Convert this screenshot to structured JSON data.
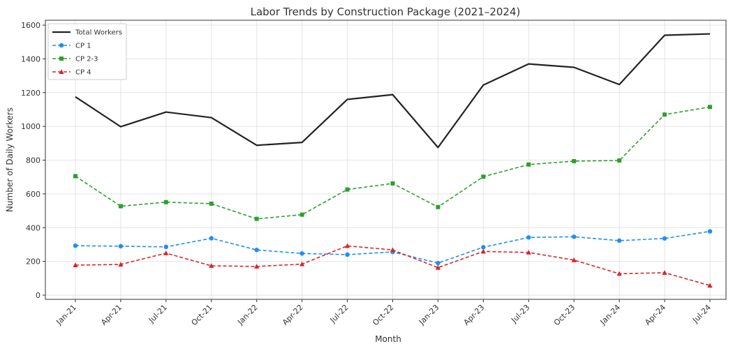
{
  "chart_data": {
    "type": "line",
    "title": "Labor Trends by Construction Package (2021–2024)",
    "xlabel": "Month",
    "ylabel": "Number of Daily Workers",
    "categories": [
      "Jan-21",
      "Apr-21",
      "Jul-21",
      "Oct-21",
      "Jan-22",
      "Apr-22",
      "Jul-22",
      "Oct-22",
      "Jan-23",
      "Apr-23",
      "Jul-23",
      "Oct-23",
      "Jan-24",
      "Apr-24",
      "Jul-24"
    ],
    "ylim": [
      0,
      1600
    ],
    "yticks": [
      0,
      200,
      400,
      600,
      800,
      1000,
      1200,
      1400,
      1600
    ],
    "grid": true,
    "legend_position": "top-left",
    "series": [
      {
        "name": "Total Workers",
        "color": "#222222",
        "style": "solid",
        "marker": "none",
        "values": [
          1175,
          998,
          1085,
          1052,
          888,
          905,
          1160,
          1188,
          875,
          1245,
          1370,
          1350,
          1248,
          1540,
          1548
        ]
      },
      {
        "name": "CP 1",
        "color": "#1f8ff0",
        "style": "dashed",
        "marker": "circle",
        "values": [
          293,
          290,
          286,
          337,
          268,
          247,
          240,
          256,
          190,
          284,
          342,
          346,
          323,
          336,
          378
        ]
      },
      {
        "name": "CP 2-3",
        "color": "#2ca02c",
        "style": "dashed",
        "marker": "square",
        "values": [
          705,
          527,
          551,
          542,
          452,
          477,
          626,
          662,
          522,
          702,
          774,
          794,
          798,
          1070,
          1115
        ]
      },
      {
        "name": "CP 4",
        "color": "#d62728",
        "style": "dashed",
        "marker": "triangle",
        "values": [
          178,
          182,
          249,
          174,
          170,
          184,
          292,
          268,
          163,
          259,
          253,
          208,
          127,
          133,
          57
        ]
      }
    ]
  }
}
